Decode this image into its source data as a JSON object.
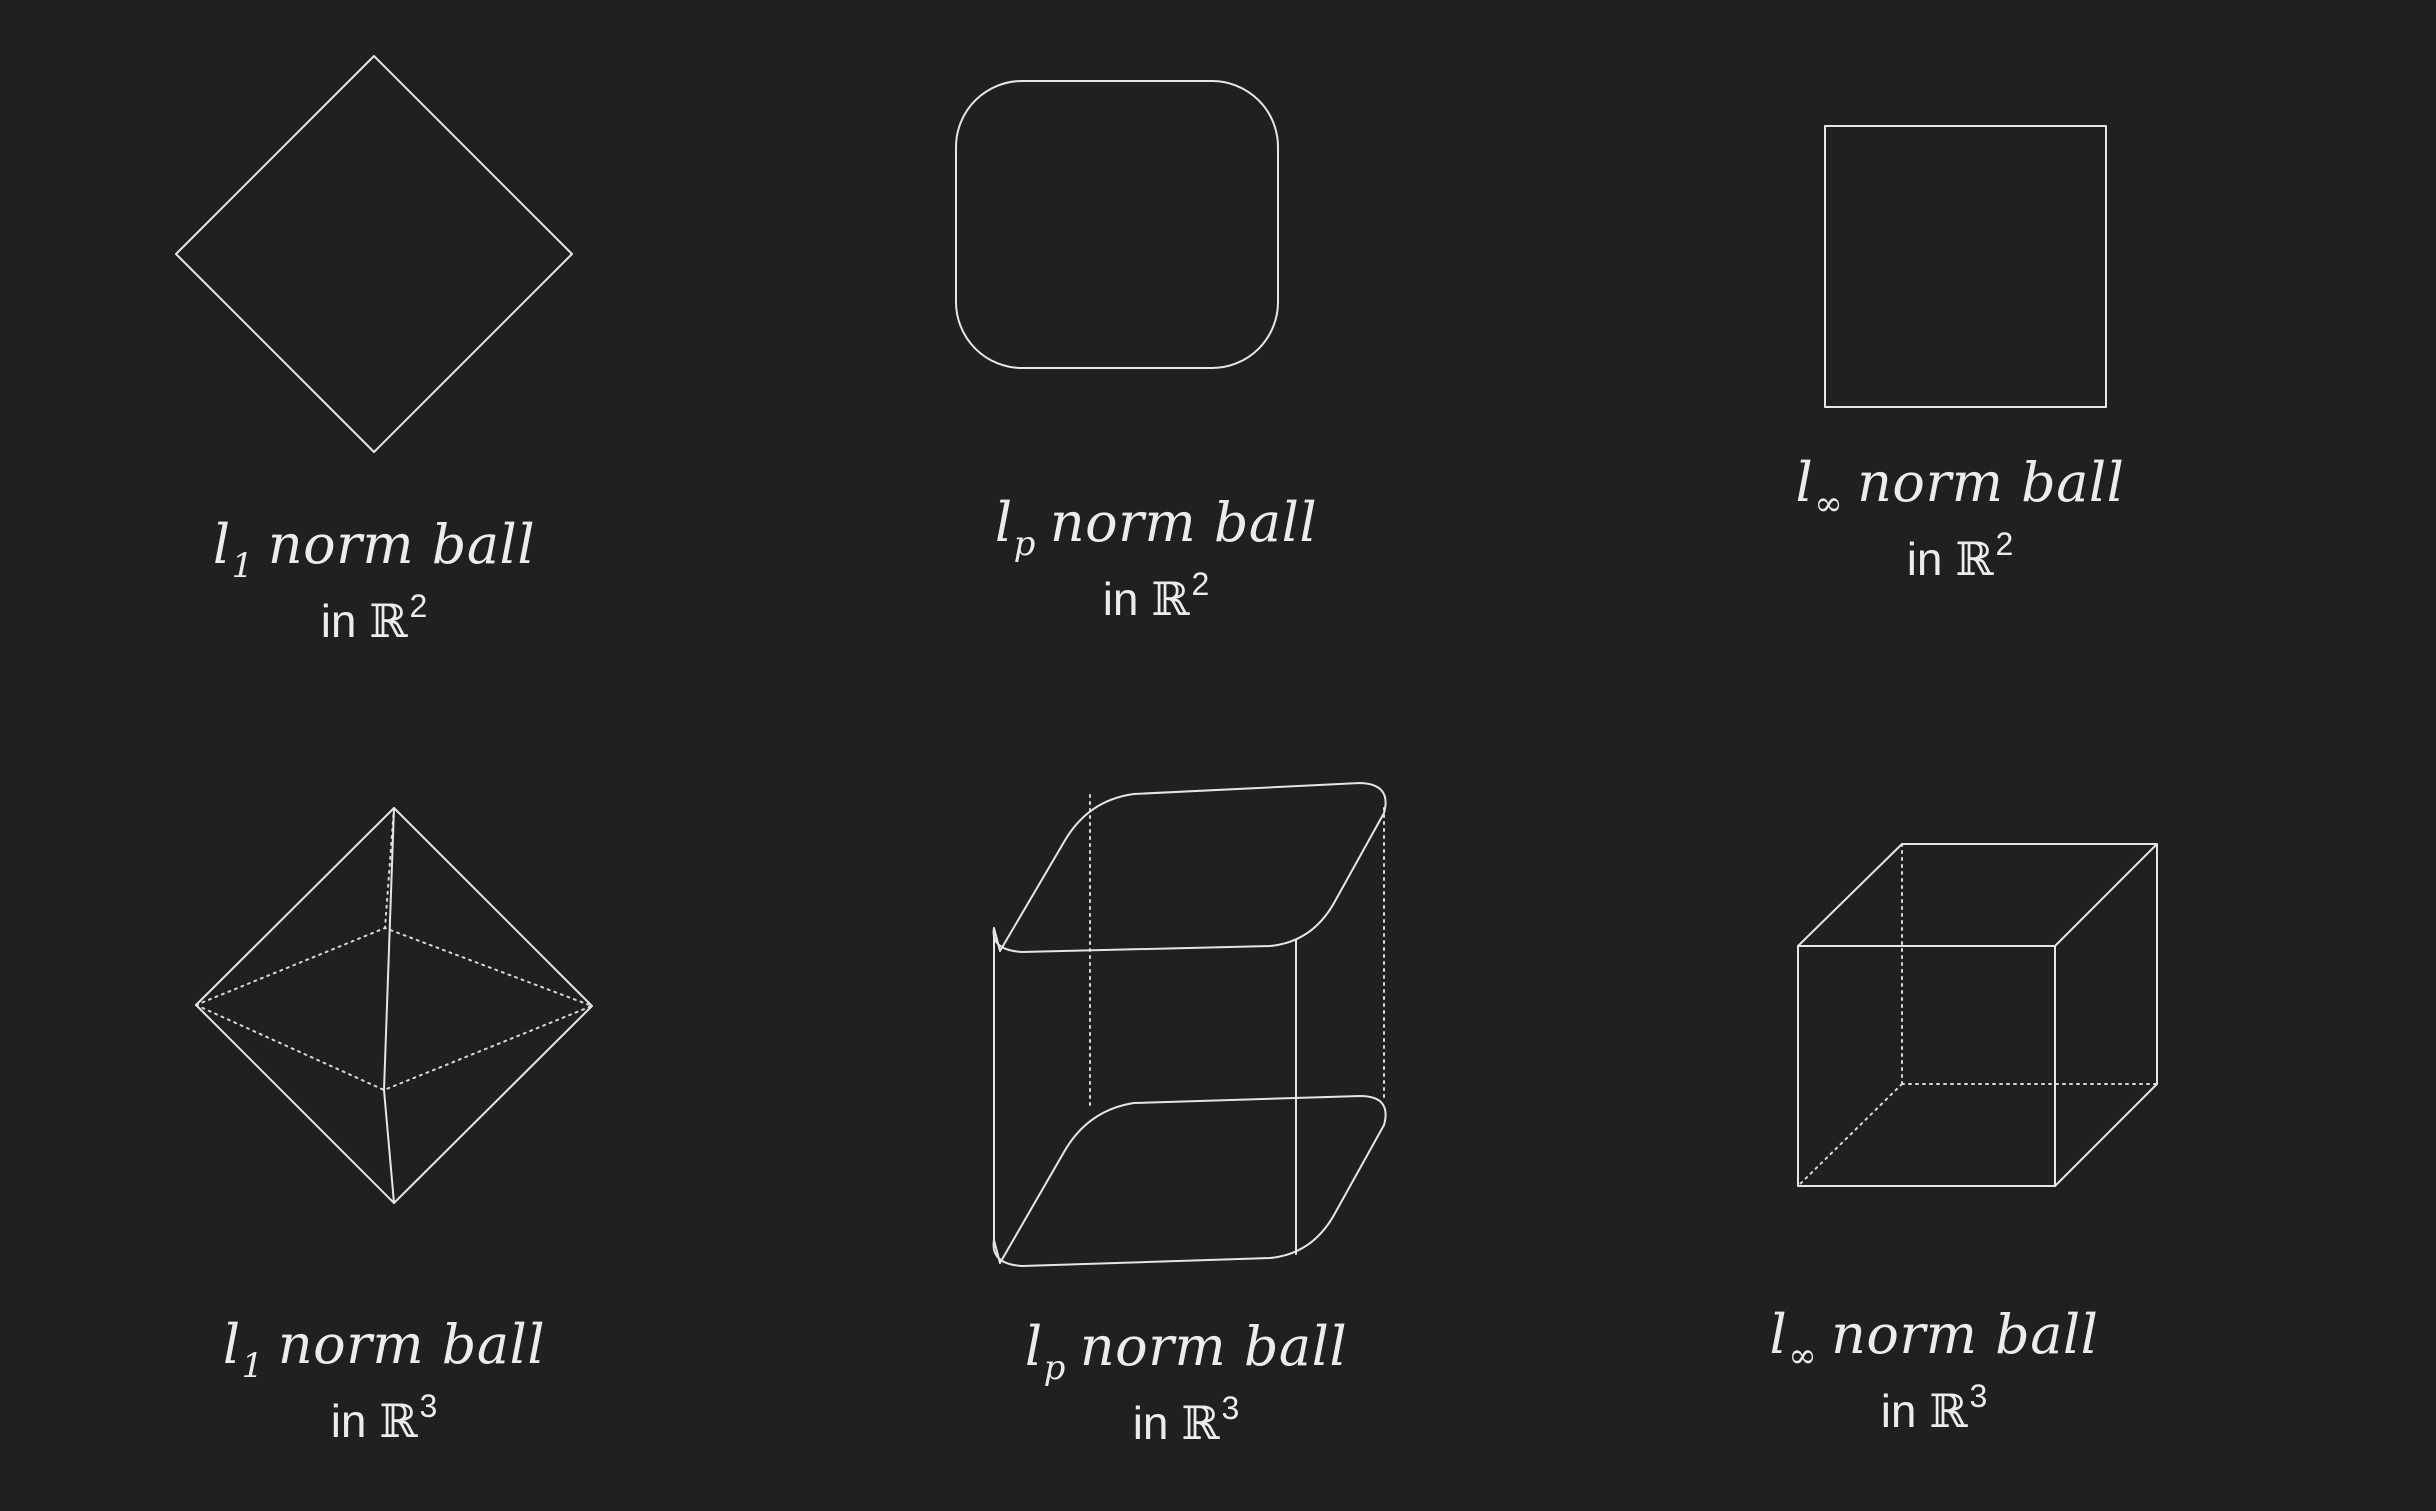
{
  "panels": [
    {
      "id": "l1-2d",
      "norm_symbol": "l",
      "subscript": "1",
      "title_rest": "norm ball",
      "space_prefix": "in",
      "space_symbol": "ℝ",
      "dimension": "2"
    },
    {
      "id": "lp-2d",
      "norm_symbol": "l",
      "subscript": "p",
      "title_rest": "norm ball",
      "space_prefix": "in",
      "space_symbol": "ℝ",
      "dimension": "2"
    },
    {
      "id": "linf-2d",
      "norm_symbol": "l",
      "subscript": "∞",
      "title_rest": "norm ball",
      "space_prefix": "in",
      "space_symbol": "ℝ",
      "dimension": "2"
    },
    {
      "id": "l1-3d",
      "norm_symbol": "l",
      "subscript": "1",
      "title_rest": "norm ball",
      "space_prefix": "in",
      "space_symbol": "ℝ",
      "dimension": "3"
    },
    {
      "id": "lp-3d",
      "norm_symbol": "l",
      "subscript": "p",
      "title_rest": "norm ball",
      "space_prefix": "in",
      "space_symbol": "ℝ",
      "dimension": "3"
    },
    {
      "id": "linf-3d",
      "norm_symbol": "l",
      "subscript": "∞",
      "title_rest": "norm ball",
      "space_prefix": "in",
      "space_symbol": "ℝ",
      "dimension": "3"
    }
  ],
  "colors": {
    "background": "#202020",
    "line": "#e6e6e6",
    "text": "#ececec"
  }
}
